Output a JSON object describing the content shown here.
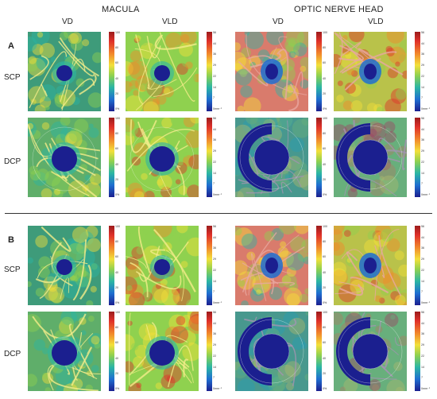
{
  "headers": {
    "macula": "MACULA",
    "onh": "OPTIC NERVE HEAD"
  },
  "columns": [
    "VD",
    "VLD",
    "VD",
    "VLD"
  ],
  "panels": [
    {
      "letter": "A",
      "rows": [
        "SCP",
        "DCP"
      ]
    },
    {
      "letter": "B",
      "rows": [
        "SCP",
        "DCP"
      ]
    }
  ],
  "colorbars": {
    "vd_ticks": [
      "100",
      "80",
      "60",
      "40",
      "20",
      "0%"
    ],
    "vld_ticks": [
      "56",
      "44",
      "36",
      "29",
      "22",
      "14",
      "7",
      "0mm⁻¹"
    ]
  },
  "colors": {
    "deep_red": "#9b1c1c",
    "red": "#e0312a",
    "orange": "#f28a2b",
    "yellow": "#f3e03a",
    "green": "#8fd14f",
    "teal": "#2bb6a4",
    "blue": "#1f6fd1",
    "navy": "#1b1f8f"
  }
}
